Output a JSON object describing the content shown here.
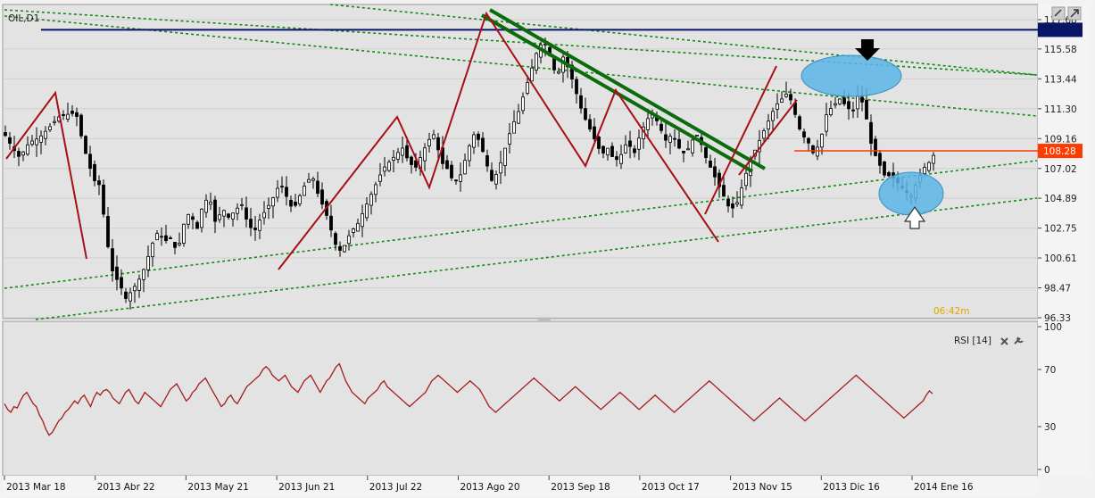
{
  "chart_data": [
    {
      "type": "candlestick",
      "symbol_label": "OIL,D1",
      "y_tick_labels": [
        "117.68",
        "115.58",
        "113.44",
        "111.30",
        "109.16",
        "107.02",
        "104.89",
        "102.75",
        "100.61",
        "98.47",
        "96.33"
      ],
      "ylim": [
        96.33,
        117.68
      ],
      "current_price_label": "108.28",
      "current_price": 108.28,
      "resistance_level": 116.95,
      "timer_label": "06:42m",
      "x_labels": [
        "2013 Mar 18",
        "2013 Abr 22",
        "2013 May 21",
        "2013 Jun 21",
        "2013 Jul 22",
        "2013 Ago 20",
        "2013 Sep 18",
        "2013 Oct 17",
        "2013 Nov 15",
        "2013 Dic 16",
        "2014 Ene 16"
      ],
      "close_path": [
        [
          0,
          109.6
        ],
        [
          6,
          108.4
        ],
        [
          10,
          107.8
        ],
        [
          16,
          108.9
        ],
        [
          22,
          109.2
        ],
        [
          28,
          109.9
        ],
        [
          34,
          110.7
        ],
        [
          40,
          110.9
        ],
        [
          45,
          111.0
        ],
        [
          50,
          108.5
        ],
        [
          56,
          106.2
        ],
        [
          60,
          105.8
        ],
        [
          64,
          102.0
        ],
        [
          68,
          99.5
        ],
        [
          72,
          98.8
        ],
        [
          76,
          97.7
        ],
        [
          80,
          98.3
        ],
        [
          84,
          99.0
        ],
        [
          88,
          100.0
        ],
        [
          92,
          101.5
        ],
        [
          96,
          102.5
        ],
        [
          100,
          101.8
        ],
        [
          104,
          102.0
        ],
        [
          108,
          101.0
        ],
        [
          112,
          103.0
        ],
        [
          116,
          104.0
        ],
        [
          120,
          102.5
        ],
        [
          124,
          104.5
        ],
        [
          128,
          105.0
        ],
        [
          132,
          103.0
        ],
        [
          136,
          104.2
        ],
        [
          140,
          103.5
        ],
        [
          144,
          104.0
        ],
        [
          148,
          104.5
        ],
        [
          152,
          103.0
        ],
        [
          156,
          102.5
        ],
        [
          160,
          103.5
        ],
        [
          164,
          104.2
        ],
        [
          168,
          105.0
        ],
        [
          172,
          106.0
        ],
        [
          176,
          105.0
        ],
        [
          180,
          104.0
        ],
        [
          184,
          105.0
        ],
        [
          188,
          106.0
        ],
        [
          192,
          106.5
        ],
        [
          196,
          105.0
        ],
        [
          200,
          104.0
        ],
        [
          204,
          102.5
        ],
        [
          208,
          101.0
        ],
        [
          212,
          101.5
        ],
        [
          216,
          102.5
        ],
        [
          220,
          103.0
        ],
        [
          224,
          104.0
        ],
        [
          228,
          105.0
        ],
        [
          232,
          106.0
        ],
        [
          236,
          107.0
        ],
        [
          240,
          107.5
        ],
        [
          244,
          108.0
        ],
        [
          248,
          108.5
        ],
        [
          252,
          107.5
        ],
        [
          256,
          107.0
        ],
        [
          260,
          108.0
        ],
        [
          264,
          109.0
        ],
        [
          268,
          109.5
        ],
        [
          272,
          107.5
        ],
        [
          276,
          107.0
        ],
        [
          280,
          106.0
        ],
        [
          284,
          106.5
        ],
        [
          288,
          108.0
        ],
        [
          292,
          109.5
        ],
        [
          296,
          109.0
        ],
        [
          300,
          107.5
        ],
        [
          304,
          106.0
        ],
        [
          308,
          107.0
        ],
        [
          312,
          108.5
        ],
        [
          316,
          110.0
        ],
        [
          320,
          111.0
        ],
        [
          324,
          112.5
        ],
        [
          328,
          114.0
        ],
        [
          332,
          115.5
        ],
        [
          336,
          116.2
        ],
        [
          340,
          115.0
        ],
        [
          344,
          113.5
        ],
        [
          348,
          115.0
        ],
        [
          352,
          114.0
        ],
        [
          356,
          112.5
        ],
        [
          360,
          111.0
        ],
        [
          364,
          110.0
        ],
        [
          368,
          109.0
        ],
        [
          372,
          108.0
        ],
        [
          376,
          108.5
        ],
        [
          380,
          107.5
        ],
        [
          384,
          108.0
        ],
        [
          388,
          109.0
        ],
        [
          392,
          108.0
        ],
        [
          396,
          109.5
        ],
        [
          400,
          110.5
        ],
        [
          404,
          111.0
        ],
        [
          408,
          110.0
        ],
        [
          412,
          109.0
        ],
        [
          416,
          109.5
        ],
        [
          420,
          108.5
        ],
        [
          424,
          108.0
        ],
        [
          428,
          109.0
        ],
        [
          432,
          109.5
        ],
        [
          436,
          108.0
        ],
        [
          440,
          107.0
        ],
        [
          444,
          106.0
        ],
        [
          448,
          105.0
        ],
        [
          452,
          104.0
        ],
        [
          456,
          104.5
        ],
        [
          460,
          106.0
        ],
        [
          464,
          107.5
        ],
        [
          468,
          108.5
        ],
        [
          472,
          109.5
        ],
        [
          476,
          110.5
        ],
        [
          480,
          111.5
        ],
        [
          484,
          112.0
        ],
        [
          488,
          112.5
        ],
        [
          492,
          111.0
        ],
        [
          496,
          109.5
        ],
        [
          500,
          109.0
        ],
        [
          504,
          108.0
        ],
        [
          508,
          109.0
        ],
        [
          512,
          111.0
        ],
        [
          516,
          111.5
        ],
        [
          520,
          112.0
        ],
        [
          524,
          111.5
        ],
        [
          528,
          111.0
        ],
        [
          532,
          112.5
        ],
        [
          536,
          111.0
        ],
        [
          540,
          108.5
        ],
        [
          544,
          107.5
        ],
        [
          548,
          106.5
        ],
        [
          552,
          106.5
        ],
        [
          556,
          106.0
        ],
        [
          560,
          105.5
        ],
        [
          564,
          105.0
        ],
        [
          568,
          106.0
        ],
        [
          572,
          107.0
        ],
        [
          576,
          107.5
        ],
        [
          580,
          108.28
        ]
      ]
    },
    {
      "type": "line",
      "title": "RSI [14]",
      "y_tick_labels": [
        "100",
        "70",
        "30",
        "0"
      ],
      "ylim": [
        0,
        100
      ],
      "series": [
        {
          "values": [
            46,
            42,
            40,
            44,
            43,
            48,
            52,
            54,
            50,
            46,
            44,
            38,
            34,
            28,
            24,
            26,
            30,
            34,
            36,
            40,
            42,
            45,
            48,
            46,
            50,
            52,
            48,
            44,
            50,
            54,
            52,
            55,
            56,
            54,
            50,
            48,
            46,
            50,
            54,
            56,
            52,
            48,
            46,
            50,
            54,
            52,
            50,
            48,
            46,
            44,
            48,
            52,
            56,
            58,
            60,
            56,
            52,
            48,
            50,
            54,
            56,
            60,
            62,
            64,
            60,
            56,
            52,
            48,
            44,
            46,
            50,
            52,
            48,
            46,
            50,
            54,
            58,
            60,
            62,
            64,
            66,
            70,
            72,
            70,
            66,
            64,
            62,
            64,
            66,
            62,
            58,
            56,
            54,
            58,
            62,
            64,
            66,
            62,
            58,
            54,
            58,
            62,
            64,
            68,
            72,
            74,
            68,
            62,
            58,
            54,
            52,
            50,
            48,
            46,
            50,
            52,
            54,
            56,
            60,
            62,
            58,
            56,
            54,
            52,
            50,
            48,
            46,
            44,
            46,
            48,
            50,
            52,
            54,
            58,
            62,
            64,
            66,
            64,
            62,
            60,
            58,
            56,
            54,
            56,
            58,
            60,
            62,
            60,
            58,
            56,
            52,
            48,
            44,
            42,
            40,
            42,
            44,
            46,
            48,
            50,
            52,
            54,
            56,
            58,
            60,
            62,
            64,
            62,
            60,
            58,
            56,
            54,
            52,
            50,
            48,
            50,
            52,
            54,
            56,
            58,
            56,
            54,
            52,
            50,
            48,
            46,
            44,
            42,
            44,
            46,
            48,
            50,
            52,
            54,
            52,
            50,
            48,
            46,
            44,
            42,
            44,
            46,
            48,
            50,
            52,
            50,
            48,
            46,
            44,
            42,
            40,
            42,
            44,
            46,
            48,
            50,
            52,
            54,
            56,
            58,
            60,
            62,
            60,
            58,
            56,
            54,
            52,
            50,
            48,
            46,
            44,
            42,
            40,
            38,
            36,
            34,
            36,
            38,
            40,
            42,
            44,
            46,
            48,
            50,
            48,
            46,
            44,
            42,
            40,
            38,
            36,
            34,
            36,
            38,
            40,
            42,
            44,
            46,
            48,
            50,
            52,
            54,
            56,
            58,
            60,
            62,
            64,
            66,
            64,
            62,
            60,
            58,
            56,
            54,
            52,
            50,
            48,
            46,
            44,
            42,
            40,
            38,
            36,
            38,
            40,
            42,
            44,
            46,
            48,
            52,
            55,
            53
          ]
        }
      ]
    }
  ],
  "colors": {
    "background": "#e6e6e6",
    "panel_bg": "#d9d9d9",
    "candles": "#000000",
    "price_line": "#ff3b00",
    "resistance_line": "#0a1466",
    "trend_dotted": "#138a13",
    "channel_solid": "#0c6b0c",
    "zigzag": "#a80e16",
    "ellipse_fill": "#5ab6e6",
    "rsi_line": "#a51c1c",
    "timer": "#e0a800"
  },
  "icons": {
    "rsi_close": "close-icon",
    "rsi_settings": "wrench-icon",
    "down_arrow": "down-arrow-icon",
    "up_arrow": "up-arrow-icon"
  }
}
